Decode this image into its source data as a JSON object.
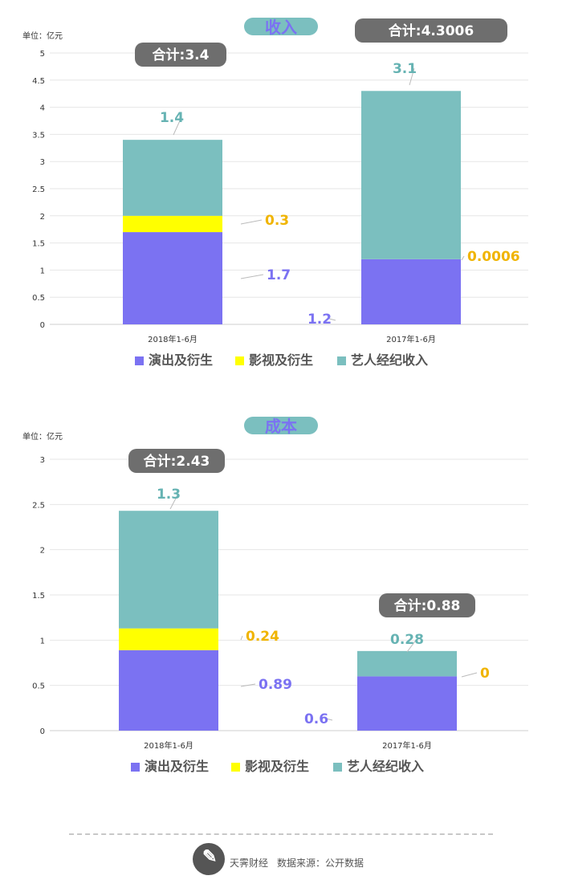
{
  "chart_data": [
    {
      "type": "bar",
      "stacked": true,
      "title": "收入",
      "unit_label": "单位：亿元",
      "categories": [
        "2018年1-6月",
        "2017年1-6月"
      ],
      "series": [
        {
          "name": "演出及衍生",
          "values": [
            1.7,
            1.2
          ],
          "labels": [
            "1.7",
            "1.2"
          ],
          "color": "#7b72f2"
        },
        {
          "name": "影视及衍生",
          "values": [
            0.3,
            0.0006
          ],
          "labels": [
            "0.3",
            "0.0006"
          ],
          "color": "#ffff00"
        },
        {
          "name": "艺人经纪收入",
          "values": [
            1.4,
            3.1
          ],
          "labels": [
            "1.4",
            "3.1"
          ],
          "color": "#7bbfbf"
        }
      ],
      "totals": [
        "合计:3.4",
        "合计:4.3006"
      ],
      "ylim": [
        0,
        5
      ],
      "yticks": [
        "0",
        "0.5",
        "1",
        "1.5",
        "2",
        "2.5",
        "3",
        "3.5",
        "4",
        "4.5",
        "5"
      ],
      "grid": true,
      "legend_position": "bottom"
    },
    {
      "type": "bar",
      "stacked": true,
      "title": "成本",
      "unit_label": "单位：亿元",
      "categories": [
        "2018年1-6月",
        "2017年1-6月"
      ],
      "series": [
        {
          "name": "演出及衍生",
          "values": [
            0.89,
            0.6
          ],
          "labels": [
            "0.89",
            "0.6"
          ],
          "color": "#7b72f2"
        },
        {
          "name": "影视及衍生",
          "values": [
            0.24,
            0
          ],
          "labels": [
            "0.24",
            "0"
          ],
          "color": "#ffff00"
        },
        {
          "name": "艺人经纪收入",
          "values": [
            1.3,
            0.28
          ],
          "labels": [
            "1.3",
            "0.28"
          ],
          "color": "#7bbfbf"
        }
      ],
      "totals": [
        "合计:2.43",
        "合计:0.88"
      ],
      "ylim": [
        0,
        3
      ],
      "yticks": [
        "0",
        "0.5",
        "1",
        "1.5",
        "2",
        "2.5",
        "3"
      ],
      "grid": true,
      "legend_position": "bottom"
    }
  ],
  "colors": {
    "title_pill": "#7bbfbf",
    "title_text": "#7b72f2",
    "total_pill": "#6e6e6e",
    "label_orange": "#f0b400",
    "label_purple": "#7b72f2",
    "label_teal": "#66b3b3"
  },
  "footer": {
    "brand": "天霁财经",
    "source": "数据来源：公开数据"
  }
}
